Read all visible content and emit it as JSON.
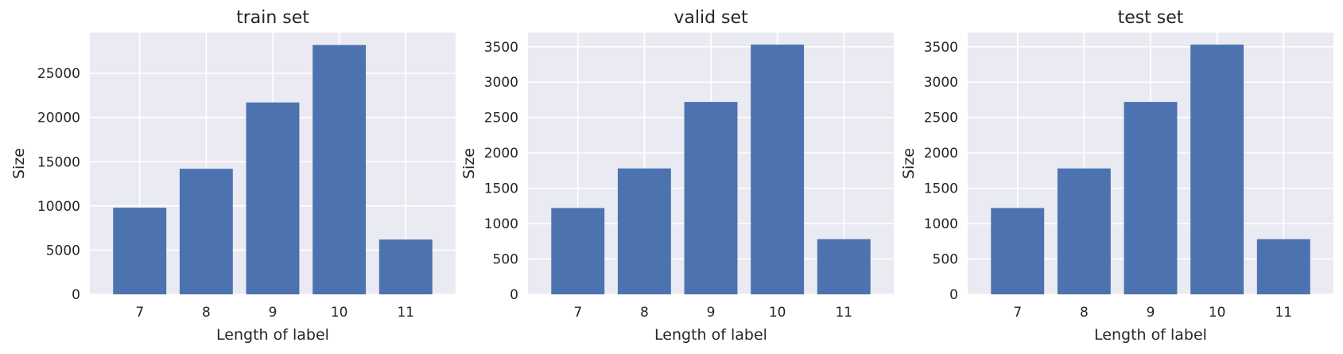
{
  "chart_data": [
    {
      "type": "bar",
      "title": "train set",
      "xlabel": "Length of label",
      "ylabel": "Size",
      "categories": [
        "7",
        "8",
        "9",
        "10",
        "11"
      ],
      "values": [
        9800,
        14200,
        21700,
        28200,
        6200
      ],
      "ylim": [
        0,
        29600
      ],
      "yticks": [
        0,
        5000,
        10000,
        15000,
        20000,
        25000
      ],
      "grid": true,
      "color": "#4c72b0"
    },
    {
      "type": "bar",
      "title": "valid set",
      "xlabel": "Length of label",
      "ylabel": "Size",
      "categories": [
        "7",
        "8",
        "9",
        "10",
        "11"
      ],
      "values": [
        1220,
        1780,
        2720,
        3530,
        780
      ],
      "ylim": [
        0,
        3700
      ],
      "yticks": [
        0,
        500,
        1000,
        1500,
        2000,
        2500,
        3000,
        3500
      ],
      "grid": true,
      "color": "#4c72b0"
    },
    {
      "type": "bar",
      "title": "test set",
      "xlabel": "Length of label",
      "ylabel": "Size",
      "categories": [
        "7",
        "8",
        "9",
        "10",
        "11"
      ],
      "values": [
        1220,
        1780,
        2720,
        3530,
        780
      ],
      "ylim": [
        0,
        3700
      ],
      "yticks": [
        0,
        500,
        1000,
        1500,
        2000,
        2500,
        3000,
        3500
      ],
      "grid": true,
      "color": "#4c72b0"
    }
  ],
  "colors": {
    "plot_background": "#eaeaf2",
    "grid": "#ffffff",
    "bar": "#4c72b0",
    "text": "#262626"
  }
}
